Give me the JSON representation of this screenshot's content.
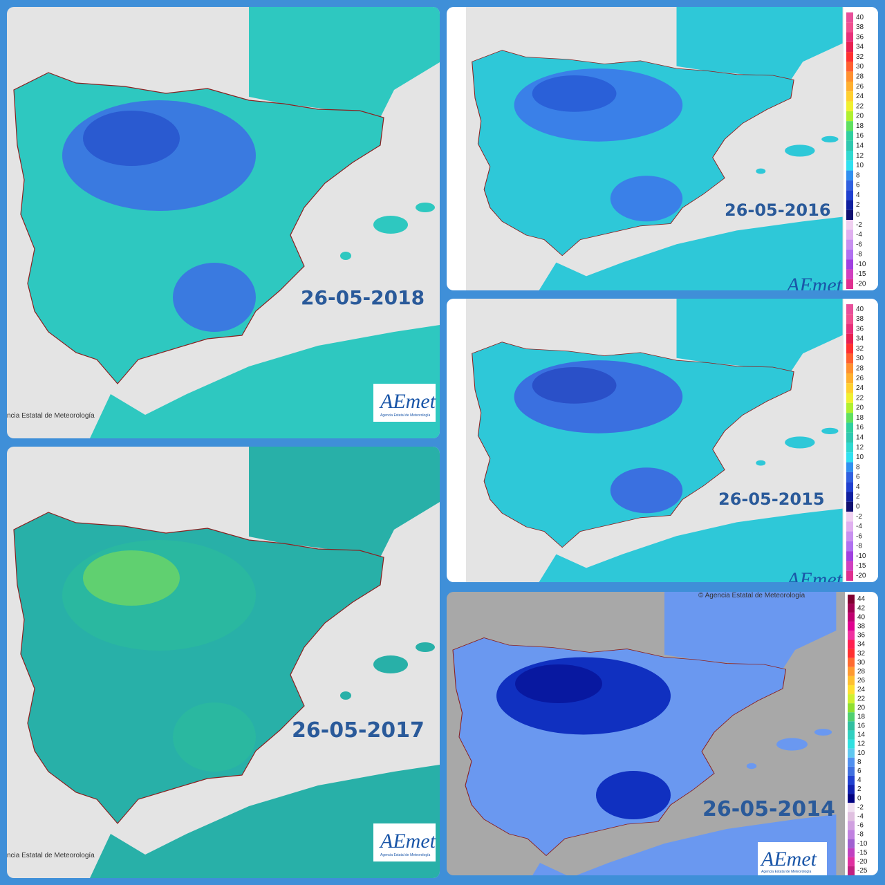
{
  "panels": [
    {
      "date": "26-05-2018",
      "credit": "ncia Estatal de Meteorología",
      "logo": "AEmet",
      "logo_sub": "Agencia Estatal de Meteorología"
    },
    {
      "date": "26-05-2016",
      "logo": "AEmet"
    },
    {
      "date": "26-05-2015",
      "logo": "AEmet"
    },
    {
      "date": "26-05-2017",
      "credit": "ncia Estatal de Meteorología",
      "logo": "AEmet",
      "logo_sub": "Agencia Estatal de Meteorología"
    },
    {
      "date": "26-05-2014",
      "credit": "© Agencia Estatal de Meteorología",
      "logo": "AEmet",
      "logo_sub": "Agencia Estatal de Meteorología"
    }
  ],
  "legends": [
    {
      "entries": [
        {
          "label": "40",
          "color": "#e8509a"
        },
        {
          "label": "38",
          "color": "#f05090"
        },
        {
          "label": "36",
          "color": "#e8307a"
        },
        {
          "label": "34",
          "color": "#e82050"
        },
        {
          "label": "32",
          "color": "#ff3030"
        },
        {
          "label": "30",
          "color": "#ff6030"
        },
        {
          "label": "28",
          "color": "#ff9030"
        },
        {
          "label": "26",
          "color": "#ffb030"
        },
        {
          "label": "24",
          "color": "#ffd030"
        },
        {
          "label": "22",
          "color": "#f0f030"
        },
        {
          "label": "20",
          "color": "#b0f030"
        },
        {
          "label": "18",
          "color": "#60e060"
        },
        {
          "label": "16",
          "color": "#30d0a0"
        },
        {
          "label": "14",
          "color": "#30c8b0"
        },
        {
          "label": "12",
          "color": "#30d8d0"
        },
        {
          "label": "10",
          "color": "#30e0f0"
        },
        {
          "label": "8",
          "color": "#3090f0"
        },
        {
          "label": "6",
          "color": "#3060e0"
        },
        {
          "label": "4",
          "color": "#2040d0"
        },
        {
          "label": "2",
          "color": "#1020a0"
        },
        {
          "label": "0",
          "color": "#101070"
        },
        {
          "label": "-2",
          "color": "#f0d0f0"
        },
        {
          "label": "-4",
          "color": "#e0b0f0"
        },
        {
          "label": "-6",
          "color": "#c890f0"
        },
        {
          "label": "-8",
          "color": "#b070f0"
        },
        {
          "label": "-10",
          "color": "#a040e0"
        },
        {
          "label": "-15",
          "color": "#d040c0"
        },
        {
          "label": "-20",
          "color": "#e03090"
        }
      ]
    },
    {
      "entries": [
        {
          "label": "44",
          "color": "#800030"
        },
        {
          "label": "42",
          "color": "#a00050"
        },
        {
          "label": "40",
          "color": "#c00070"
        },
        {
          "label": "38",
          "color": "#e00090"
        },
        {
          "label": "36",
          "color": "#f030a0"
        },
        {
          "label": "34",
          "color": "#ff2050"
        },
        {
          "label": "32",
          "color": "#ff3030"
        },
        {
          "label": "30",
          "color": "#ff6a30"
        },
        {
          "label": "28",
          "color": "#ff9a30"
        },
        {
          "label": "26",
          "color": "#ffc030"
        },
        {
          "label": "24",
          "color": "#ffe030"
        },
        {
          "label": "22",
          "color": "#d0f030"
        },
        {
          "label": "20",
          "color": "#90e030"
        },
        {
          "label": "18",
          "color": "#50d070"
        },
        {
          "label": "16",
          "color": "#30c0a0"
        },
        {
          "label": "14",
          "color": "#30d0c0"
        },
        {
          "label": "12",
          "color": "#30e0e0"
        },
        {
          "label": "10",
          "color": "#60c8f0"
        },
        {
          "label": "8",
          "color": "#5090f0"
        },
        {
          "label": "6",
          "color": "#4070e0"
        },
        {
          "label": "4",
          "color": "#2040d0"
        },
        {
          "label": "2",
          "color": "#1020b0"
        },
        {
          "label": "0",
          "color": "#000080"
        },
        {
          "label": "-2",
          "color": "#f0e0f0"
        },
        {
          "label": "-4",
          "color": "#e0c0e0"
        },
        {
          "label": "-6",
          "color": "#d0a0e0"
        },
        {
          "label": "-8",
          "color": "#c080e0"
        },
        {
          "label": "-10",
          "color": "#a060d0"
        },
        {
          "label": "-15",
          "color": "#c040c0"
        },
        {
          "label": "-20",
          "color": "#e030a0"
        },
        {
          "label": "-25",
          "color": "#c02080"
        }
      ]
    }
  ]
}
